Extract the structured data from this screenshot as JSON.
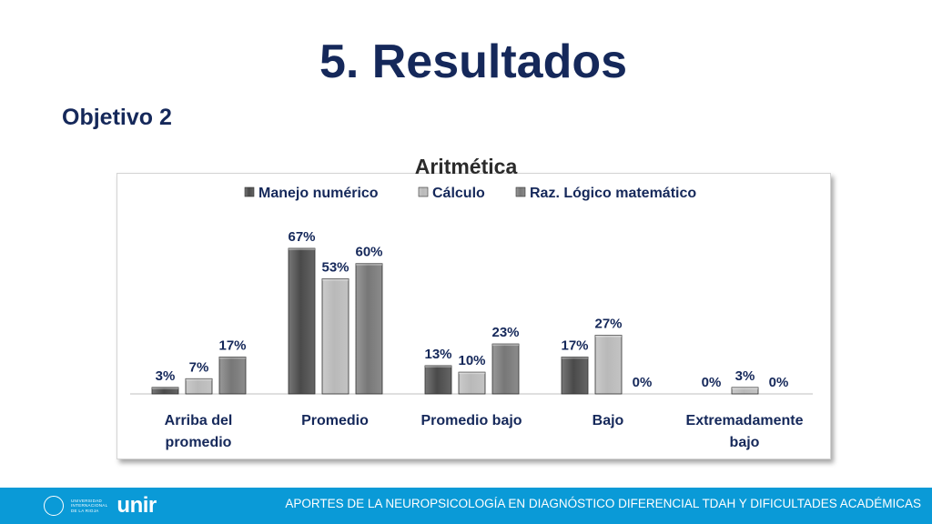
{
  "slide": {
    "title": "5. Resultados",
    "subtitle": "Objetivo 2"
  },
  "footer": {
    "text": "APORTES DE LA NEUROPSICOLOGÍA EN DIAGNÓSTICO DIFERENCIAL TDAH Y DIFICULTADES ACADÉMICAS",
    "logo_small_lines": [
      "UNIVERSIDAD",
      "INTERNACIONAL",
      "DE LA RIOJA"
    ],
    "logo_word": "unir",
    "color": "#0a9ad7"
  },
  "chart_data": {
    "type": "bar",
    "title": "Aritmética",
    "categories": [
      [
        "Arriba del",
        "promedio"
      ],
      [
        "Promedio"
      ],
      [
        "Promedio bajo"
      ],
      [
        "Bajo"
      ],
      [
        "Extremadamente",
        "bajo"
      ]
    ],
    "series": [
      {
        "name": "Manejo numérico",
        "values": [
          3,
          67,
          13,
          17,
          0
        ],
        "labels": [
          "3%",
          "67%",
          "13%",
          "17%",
          "0%"
        ],
        "color": "#4a4a4a"
      },
      {
        "name": "Cálculo",
        "values": [
          7,
          53,
          10,
          27,
          3
        ],
        "labels": [
          "7%",
          "53%",
          "10%",
          "27%",
          "3%"
        ],
        "color": "#b9b9b9"
      },
      {
        "name": "Raz. Lógico matemático",
        "values": [
          17,
          60,
          23,
          0,
          0
        ],
        "labels": [
          "17%",
          "60%",
          "23%",
          "0%",
          "0%"
        ],
        "color": "#777777"
      }
    ],
    "ylim": [
      0,
      70
    ],
    "legend": "top",
    "grid": false,
    "label_color": "#15285a"
  }
}
